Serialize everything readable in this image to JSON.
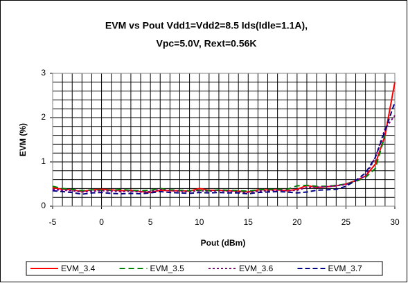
{
  "chart_data": {
    "type": "line",
    "title": [
      "EVM vs Pout Vdd1=Vdd2=8.5 Ids(Idle=1.1A),",
      "Vpc=5.0V, Rext=0.56K"
    ],
    "x_label": "Pout (dBm)",
    "y_label": "EVM (%)",
    "x": [
      -5,
      -4,
      -3,
      -2,
      -1,
      0,
      1,
      2,
      3,
      4,
      5,
      6,
      7,
      8,
      9,
      10,
      11,
      12,
      13,
      14,
      15,
      16,
      17,
      18,
      19,
      20,
      21,
      22,
      23,
      24,
      25,
      26,
      27,
      28,
      29,
      30
    ],
    "series": [
      {
        "name": "EVM_3.4",
        "color": "#ff0000",
        "dash": "none",
        "values": [
          0.42,
          0.38,
          0.37,
          0.33,
          0.37,
          0.38,
          0.37,
          0.35,
          0.36,
          0.33,
          0.31,
          0.36,
          0.35,
          0.35,
          0.34,
          0.4,
          0.36,
          0.36,
          0.35,
          0.34,
          0.32,
          0.37,
          0.37,
          0.37,
          0.35,
          0.38,
          0.47,
          0.42,
          0.44,
          0.46,
          0.5,
          0.58,
          0.68,
          0.95,
          1.6,
          2.8
        ]
      },
      {
        "name": "EVM_3.5",
        "color": "#008000",
        "dash": "8 5",
        "values": [
          0.45,
          0.4,
          0.38,
          0.35,
          0.37,
          0.36,
          0.36,
          0.38,
          0.36,
          0.35,
          0.36,
          0.4,
          0.37,
          0.36,
          0.35,
          0.36,
          0.35,
          0.37,
          0.36,
          0.35,
          0.34,
          0.37,
          0.38,
          0.38,
          0.38,
          0.46,
          0.47,
          0.45,
          0.45,
          0.47,
          0.5,
          0.56,
          0.65,
          0.85,
          1.6,
          null
        ]
      },
      {
        "name": "EVM_3.6",
        "color": "#800080",
        "dash": "3 3",
        "values": [
          0.38,
          0.36,
          0.35,
          0.32,
          0.34,
          0.35,
          0.34,
          0.33,
          0.34,
          0.32,
          0.33,
          0.38,
          0.35,
          0.34,
          0.33,
          0.35,
          0.34,
          0.35,
          0.34,
          0.33,
          0.31,
          0.34,
          0.35,
          0.36,
          0.35,
          0.36,
          0.42,
          0.43,
          0.44,
          0.46,
          0.49,
          0.57,
          0.68,
          1.1,
          1.75,
          2.05
        ]
      },
      {
        "name": "EVM_3.7",
        "color": "#000080",
        "dash": "7 4",
        "values": [
          0.35,
          0.33,
          0.31,
          0.27,
          0.3,
          0.31,
          0.29,
          0.28,
          0.29,
          0.28,
          0.3,
          0.33,
          0.31,
          0.3,
          0.29,
          0.31,
          0.3,
          0.31,
          0.3,
          0.3,
          0.28,
          0.31,
          0.32,
          0.33,
          0.32,
          0.3,
          0.32,
          0.36,
          0.37,
          0.38,
          0.45,
          0.58,
          0.75,
          1.1,
          1.7,
          2.35
        ]
      }
    ],
    "xlim": [
      -5,
      30
    ],
    "xticks": [
      -5,
      0,
      5,
      10,
      15,
      20,
      25,
      30
    ],
    "ylim": [
      0,
      3
    ],
    "yticks": [
      0,
      1,
      2,
      3
    ],
    "x_minor_ticks": [
      -4,
      -3,
      -2,
      -1,
      1,
      2,
      3,
      4,
      6,
      7,
      8,
      9,
      11,
      12,
      13,
      14,
      16,
      17,
      18,
      19,
      21,
      22,
      23,
      24,
      26,
      27,
      28,
      29
    ],
    "y_minor_ticks": [
      0.2,
      0.4,
      0.6,
      0.8,
      1.2,
      1.4,
      1.6,
      1.8,
      2.2,
      2.4,
      2.6,
      2.8
    ],
    "grid": true,
    "legend": "bottom"
  }
}
